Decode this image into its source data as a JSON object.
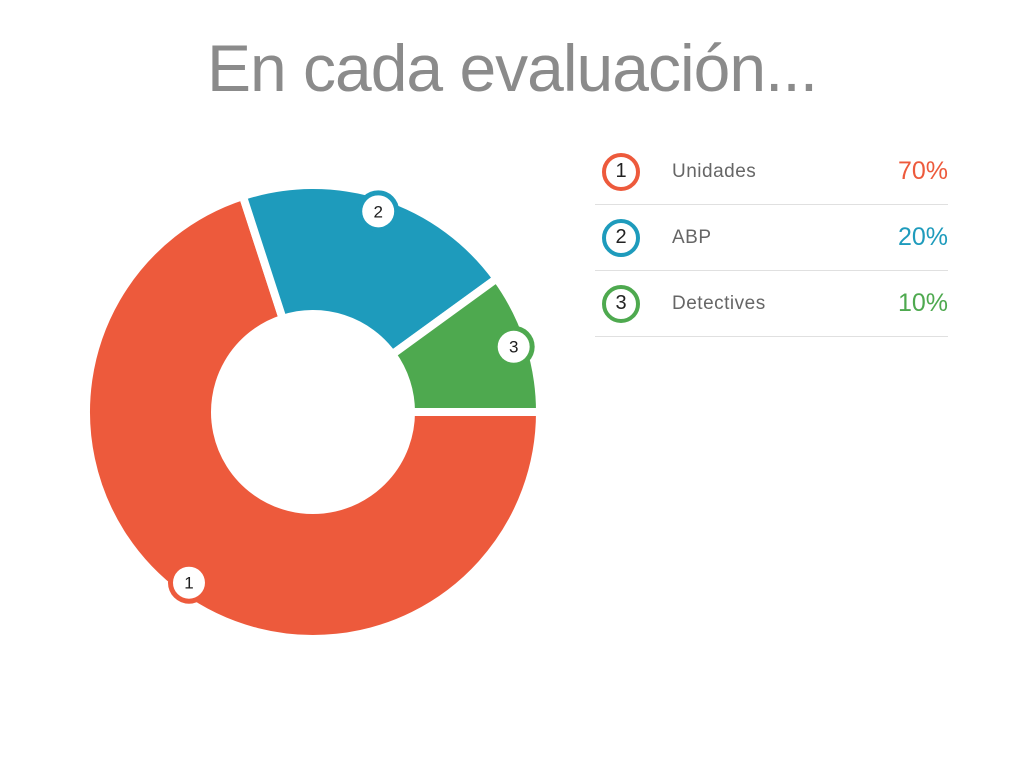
{
  "page": {
    "background": "#ffffff"
  },
  "chart_data": {
    "type": "pie",
    "subtype": "donut",
    "title": "En cada evaluación...",
    "title_color": "#8B8B8B",
    "categories": [
      "Unidades",
      "ABP",
      "Detectives"
    ],
    "values": [
      70,
      20,
      10
    ],
    "segments": [
      {
        "number": "1",
        "label": "Unidades",
        "value": 70,
        "display": "70%",
        "color": "#ED5A3C"
      },
      {
        "number": "2",
        "label": "ABP",
        "value": 20,
        "display": "20%",
        "color": "#1E9BBC"
      },
      {
        "number": "3",
        "label": "Detectives",
        "value": 10,
        "display": "10%",
        "color": "#4EA94F"
      }
    ],
    "start_angle_deg": 0,
    "direction": "clockwise",
    "inner_radius_ratio": 0.43,
    "slice_gap_color": "#ffffff",
    "badge_fill": "#ffffff",
    "badge_number_color": "#1C1C1C",
    "legend_position": "right",
    "legend_label_color": "#666666",
    "legend_number_color": "#222222",
    "legend_divider_color": "#E0E0E0"
  }
}
